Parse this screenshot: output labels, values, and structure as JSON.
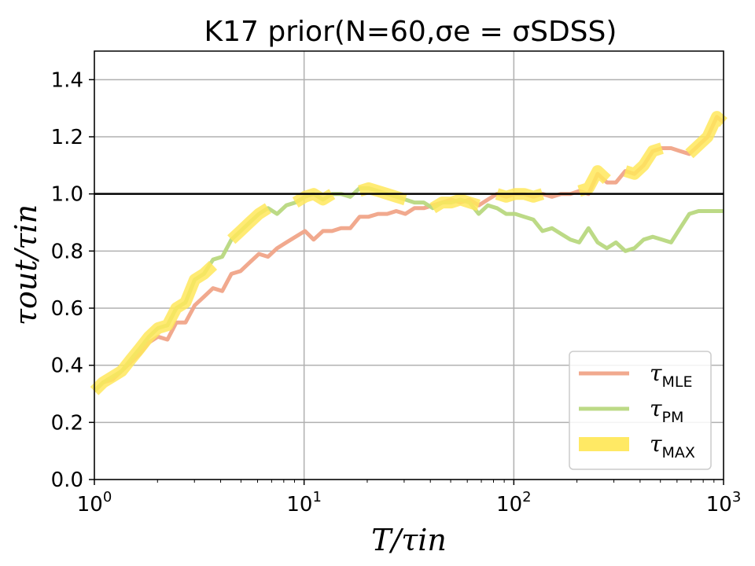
{
  "chart_data": {
    "type": "line",
    "title": "K17 prior(N=60,σe = σSDSS)",
    "xlabel": "T/τin",
    "ylabel": "τout/τin",
    "x_scale": "log",
    "xlim": [
      1,
      1000
    ],
    "ylim": [
      0,
      1.5
    ],
    "x_ticks": [
      1,
      10,
      100,
      1000
    ],
    "x_tick_labels": [
      {
        "base": "10",
        "exp": "0"
      },
      {
        "base": "10",
        "exp": "1"
      },
      {
        "base": "10",
        "exp": "2"
      },
      {
        "base": "10",
        "exp": "3"
      }
    ],
    "y_ticks": [
      0.0,
      0.2,
      0.4,
      0.6,
      0.8,
      1.0,
      1.2,
      1.4
    ],
    "y_tick_labels": [
      "0.0",
      "0.2",
      "0.4",
      "0.6",
      "0.8",
      "1.0",
      "1.2",
      "1.4"
    ],
    "grid": true,
    "legend_position": "lower-right",
    "reference_line": {
      "y": 1.0,
      "color": "#000000"
    },
    "series": [
      {
        "name": "τMLE",
        "label_main": "τ",
        "label_sub": "MLE",
        "color": "#f0a488",
        "x": [
          1.0,
          1.1,
          1.22,
          1.35,
          1.49,
          1.65,
          1.82,
          2.01,
          2.23,
          2.46,
          2.72,
          3.01,
          3.33,
          3.68,
          4.07,
          4.5,
          4.98,
          5.5,
          6.09,
          6.73,
          7.44,
          8.23,
          9.1,
          10.1,
          11.1,
          12.3,
          13.6,
          15.0,
          16.6,
          18.4,
          20.3,
          22.5,
          24.9,
          27.5,
          30.4,
          33.6,
          37.2,
          41.1,
          45.5,
          50.3,
          55.6,
          61.5,
          68.0,
          75.2,
          83.1,
          91.9,
          101.6,
          112,
          124,
          137,
          152,
          168,
          186,
          205,
          227,
          251,
          278,
          307,
          340,
          376,
          416,
          460,
          508,
          562,
          621,
          687,
          760,
          840,
          929,
          1000
        ],
        "values": [
          0.31,
          0.34,
          0.35,
          0.38,
          0.41,
          0.44,
          0.48,
          0.5,
          0.49,
          0.55,
          0.55,
          0.61,
          0.64,
          0.67,
          0.66,
          0.72,
          0.73,
          0.76,
          0.79,
          0.78,
          0.81,
          0.83,
          0.85,
          0.87,
          0.84,
          0.87,
          0.87,
          0.88,
          0.88,
          0.92,
          0.92,
          0.93,
          0.93,
          0.94,
          0.93,
          0.95,
          0.95,
          0.96,
          0.97,
          0.98,
          0.97,
          0.98,
          0.96,
          0.98,
          1.0,
          0.99,
          1.0,
          1.0,
          0.99,
          1.0,
          0.99,
          1.0,
          1.0,
          1.01,
          1.0,
          1.07,
          1.04,
          1.04,
          1.08,
          1.07,
          1.1,
          1.15,
          1.16,
          1.16,
          1.15,
          1.14,
          1.17,
          1.2,
          1.27,
          1.25
        ]
      },
      {
        "name": "τPM",
        "label_main": "τ",
        "label_sub": "PM",
        "color": "#b8d880",
        "x": [
          1.0,
          1.1,
          1.22,
          1.35,
          1.49,
          1.65,
          1.82,
          2.01,
          2.23,
          2.46,
          2.72,
          3.01,
          3.33,
          3.68,
          4.07,
          4.5,
          4.98,
          5.5,
          6.09,
          6.73,
          7.44,
          8.23,
          9.1,
          10.1,
          11.1,
          12.3,
          13.6,
          15.0,
          16.6,
          18.4,
          20.3,
          22.5,
          24.9,
          27.5,
          30.4,
          33.6,
          37.2,
          41.1,
          45.5,
          50.3,
          55.6,
          61.5,
          68.0,
          75.2,
          83.1,
          91.9,
          101.6,
          112,
          124,
          137,
          152,
          168,
          186,
          205,
          227,
          251,
          278,
          307,
          340,
          376,
          416,
          460,
          508,
          562,
          621,
          687,
          760,
          840,
          929,
          1000
        ],
        "values": [
          0.31,
          0.34,
          0.36,
          0.38,
          0.42,
          0.46,
          0.5,
          0.53,
          0.54,
          0.6,
          0.62,
          0.7,
          0.72,
          0.77,
          0.78,
          0.84,
          0.87,
          0.9,
          0.93,
          0.95,
          0.93,
          0.96,
          0.97,
          0.99,
          1.0,
          0.98,
          1.0,
          1.0,
          0.99,
          1.02,
          1.02,
          1.01,
          1.0,
          0.99,
          0.98,
          0.97,
          0.97,
          0.95,
          0.97,
          0.97,
          0.98,
          0.97,
          0.93,
          0.96,
          0.95,
          0.93,
          0.93,
          0.92,
          0.91,
          0.87,
          0.88,
          0.86,
          0.84,
          0.83,
          0.88,
          0.83,
          0.81,
          0.83,
          0.8,
          0.81,
          0.84,
          0.85,
          0.84,
          0.83,
          0.88,
          0.93,
          0.94,
          0.94,
          0.94,
          0.94
        ]
      },
      {
        "name": "τMAX",
        "label_main": "τ",
        "label_sub": "MAX",
        "color": "#ffe85c",
        "segments": [
          {
            "x": [
              1.0,
              1.1,
              1.22,
              1.35,
              1.49,
              1.65,
              1.82,
              2.01,
              2.23,
              2.46,
              2.72,
              3.01,
              3.33,
              3.68
            ],
            "values": [
              0.31,
              0.34,
              0.36,
              0.38,
              0.42,
              0.46,
              0.5,
              0.53,
              0.54,
              0.6,
              0.62,
              0.7,
              0.72,
              0.75
            ]
          },
          {
            "x": [
              4.5,
              4.98,
              5.5,
              6.09,
              6.73
            ],
            "values": [
              0.84,
              0.87,
              0.9,
              0.93,
              0.95
            ]
          },
          {
            "x": [
              9.1,
              10.1,
              11.1,
              12.3,
              13.6
            ],
            "values": [
              0.97,
              0.99,
              1.0,
              0.98,
              1.0
            ]
          },
          {
            "x": [
              18.4,
              20.3,
              22.5,
              24.9,
              27.5,
              30.4
            ],
            "values": [
              1.01,
              1.02,
              1.01,
              1.0,
              0.99,
              0.98
            ]
          },
          {
            "x": [
              41.1,
              45.5,
              50.3,
              55.6,
              61.5,
              68.0
            ],
            "values": [
              0.95,
              0.97,
              0.97,
              0.98,
              0.97,
              0.96
            ]
          },
          {
            "x": [
              83.1,
              91.9,
              101.6,
              112,
              124,
              137
            ],
            "values": [
              1.0,
              0.99,
              1.0,
              1.0,
              0.99,
              1.0
            ]
          },
          {
            "x": [
              205,
              227,
              251,
              278
            ],
            "values": [
              1.01,
              1.02,
              1.08,
              1.05
            ]
          },
          {
            "x": [
              340,
              376,
              416,
              460,
              508
            ],
            "values": [
              1.08,
              1.07,
              1.1,
              1.15,
              1.16
            ]
          },
          {
            "x": [
              687,
              760,
              840,
              929,
              1000
            ],
            "values": [
              1.14,
              1.17,
              1.2,
              1.27,
              1.25
            ]
          }
        ]
      }
    ]
  }
}
